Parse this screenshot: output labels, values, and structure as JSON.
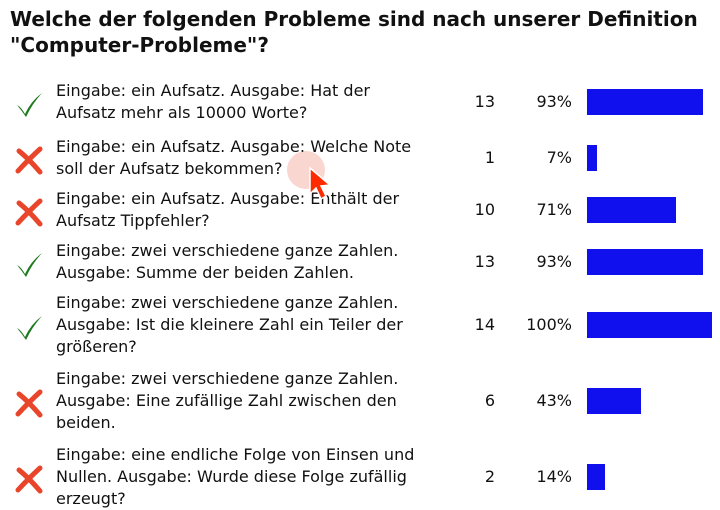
{
  "question": {
    "line1": "Welche der folgenden Probleme sind nach unserer Definition",
    "line2": "\"Computer-Probleme\"?"
  },
  "colors": {
    "correct": "#1e7a1e",
    "wrong": "#e8452a",
    "bar": "#1010ee"
  },
  "icons": {
    "correct": "check-icon",
    "wrong": "cross-icon"
  },
  "answers": [
    {
      "lines": [
        "Eingabe: ein Aufsatz. Ausgabe: Hat der",
        "Aufsatz mehr als 10000 Worte?"
      ],
      "correct": true,
      "count": "13",
      "percent_label": "93%",
      "percent": 93
    },
    {
      "lines": [
        "Eingabe: ein Aufsatz. Ausgabe: Welche Note",
        "soll der Aufsatz bekommen?"
      ],
      "correct": false,
      "count": "1",
      "percent_label": "7%",
      "percent": 7
    },
    {
      "lines": [
        "Eingabe: ein Aufsatz. Ausgabe: Enthält der",
        "Aufsatz Tippfehler?"
      ],
      "correct": false,
      "count": "10",
      "percent_label": "71%",
      "percent": 71
    },
    {
      "lines": [
        "Eingabe: zwei verschiedene ganze Zahlen.",
        "Ausgabe: Summe der beiden Zahlen."
      ],
      "correct": true,
      "count": "13",
      "percent_label": "93%",
      "percent": 93
    },
    {
      "lines": [
        "Eingabe: zwei verschiedene ganze Zahlen.",
        "Ausgabe: Ist die kleinere Zahl ein Teiler der",
        "größeren?"
      ],
      "correct": true,
      "count": "14",
      "percent_label": "100%",
      "percent": 100
    },
    {
      "lines": [
        "Eingabe: zwei verschiedene ganze Zahlen.",
        "Ausgabe: Eine zufällige Zahl zwischen den",
        "beiden."
      ],
      "correct": false,
      "count": "6",
      "percent_label": "43%",
      "percent": 43
    },
    {
      "lines": [
        "Eingabe: eine endliche Folge von Einsen und",
        "Nullen. Ausgabe: Wurde diese Folge zufällig",
        "erzeugt?"
      ],
      "correct": false,
      "count": "2",
      "percent_label": "14%",
      "percent": 14
    }
  ]
}
